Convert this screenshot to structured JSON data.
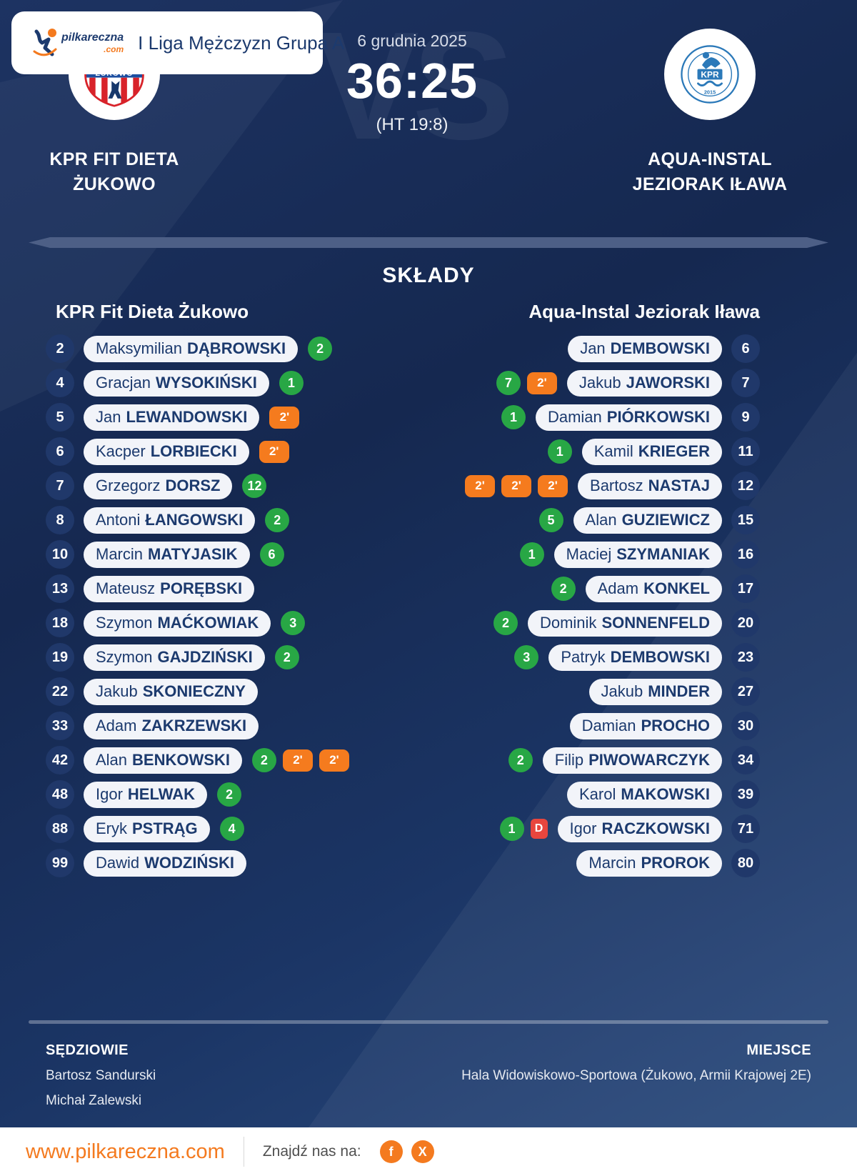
{
  "header": {
    "league": "I Liga Mężczyzn Grupa A",
    "logo_name": "pilkareczna",
    "logo_tld": ".com"
  },
  "match": {
    "date": "6 grudnia 2025",
    "score": "36:25",
    "halftime": "(HT 19:8)",
    "vs_watermark": "VS",
    "home": {
      "name_line1": "KPR FIT DIETA",
      "name_line2": "ŻUKOWO"
    },
    "away": {
      "name_line1": "AQUA-INSTAL",
      "name_line2": "JEZIORAK IŁAWA"
    }
  },
  "lineups": {
    "title": "SKŁADY",
    "home_header": "KPR Fit Dieta Żukowo",
    "away_header": "Aqua-Instal Jeziorak Iława",
    "home_players": [
      {
        "number": "2",
        "first": "Maksymilian",
        "last": "DĄBROWSKI",
        "goals": "2"
      },
      {
        "number": "4",
        "first": "Gracjan",
        "last": "WYSOKIŃSKI",
        "goals": "1"
      },
      {
        "number": "5",
        "first": "Jan",
        "last": "LEWANDOWSKI",
        "suspensions": 1
      },
      {
        "number": "6",
        "first": "Kacper",
        "last": "LORBIECKI",
        "suspensions": 1
      },
      {
        "number": "7",
        "first": "Grzegorz",
        "last": "DORSZ",
        "goals": "12"
      },
      {
        "number": "8",
        "first": "Antoni",
        "last": "ŁANGOWSKI",
        "goals": "2"
      },
      {
        "number": "10",
        "first": "Marcin",
        "last": "MATYJASIK",
        "goals": "6"
      },
      {
        "number": "13",
        "first": "Mateusz",
        "last": "PORĘBSKI"
      },
      {
        "number": "18",
        "first": "Szymon",
        "last": "MAĆKOWIAK",
        "goals": "3"
      },
      {
        "number": "19",
        "first": "Szymon",
        "last": "GAJDZIŃSKI",
        "goals": "2"
      },
      {
        "number": "22",
        "first": "Jakub",
        "last": "SKONIECZNY"
      },
      {
        "number": "33",
        "first": "Adam",
        "last": "ZAKRZEWSKI"
      },
      {
        "number": "42",
        "first": "Alan",
        "last": "BENKOWSKI",
        "goals": "2",
        "suspensions": 2
      },
      {
        "number": "48",
        "first": "Igor",
        "last": "HELWAK",
        "goals": "2"
      },
      {
        "number": "88",
        "first": "Eryk",
        "last": "PSTRĄG",
        "goals": "4"
      },
      {
        "number": "99",
        "first": "Dawid",
        "last": "WODZIŃSKI"
      }
    ],
    "away_players": [
      {
        "number": "6",
        "first": "Jan",
        "last": "DEMBOWSKI"
      },
      {
        "number": "7",
        "first": "Jakub",
        "last": "JAWORSKI",
        "goals": "7",
        "suspensions": 1
      },
      {
        "number": "9",
        "first": "Damian",
        "last": "PIÓRKOWSKI",
        "goals": "1"
      },
      {
        "number": "11",
        "first": "Kamil",
        "last": "KRIEGER",
        "goals": "1"
      },
      {
        "number": "12",
        "first": "Bartosz",
        "last": "NASTAJ",
        "suspensions": 3
      },
      {
        "number": "15",
        "first": "Alan",
        "last": "GUZIEWICZ",
        "goals": "5"
      },
      {
        "number": "16",
        "first": "Maciej",
        "last": "SZYMANIAK",
        "goals": "1"
      },
      {
        "number": "17",
        "first": "Adam",
        "last": "KONKEL",
        "goals": "2"
      },
      {
        "number": "20",
        "first": "Dominik",
        "last": "SONNENFELD",
        "goals": "2"
      },
      {
        "number": "23",
        "first": "Patryk",
        "last": "DEMBOWSKI",
        "goals": "3"
      },
      {
        "number": "27",
        "first": "Jakub",
        "last": "MINDER"
      },
      {
        "number": "30",
        "first": "Damian",
        "last": "PROCHO"
      },
      {
        "number": "34",
        "first": "Filip",
        "last": "PIWOWARCZYK",
        "goals": "2"
      },
      {
        "number": "39",
        "first": "Karol",
        "last": "MAKOWSKI"
      },
      {
        "number": "71",
        "first": "Igor",
        "last": "RACZKOWSKI",
        "goals": "1",
        "disqualified": true
      },
      {
        "number": "80",
        "first": "Marcin",
        "last": "PROROK"
      }
    ]
  },
  "badges": {
    "suspension_label": "2'",
    "disqualification_label": "D"
  },
  "officials": {
    "referees_label": "SĘDZIOWIE",
    "referees": [
      "Bartosz Sandurski",
      "Michał Zalewski"
    ],
    "venue_label": "MIEJSCE",
    "venue": "Hala Widowiskowo-Sportowa (Żukowo, Armii Krajowej 2E)"
  },
  "footer": {
    "website": "www.pilkareczna.com",
    "find_us": "Znajdź nas na:",
    "social": [
      {
        "name": "facebook-icon",
        "glyph": "f"
      },
      {
        "name": "x-icon",
        "glyph": "X"
      }
    ]
  },
  "colors": {
    "accent_orange": "#f47a1f",
    "goal_green": "#28a745",
    "suspension_orange": "#f57b1e",
    "disqualification_red": "#e8463e",
    "navy_text": "#1c3a6e",
    "background_navy": "#172b54"
  }
}
